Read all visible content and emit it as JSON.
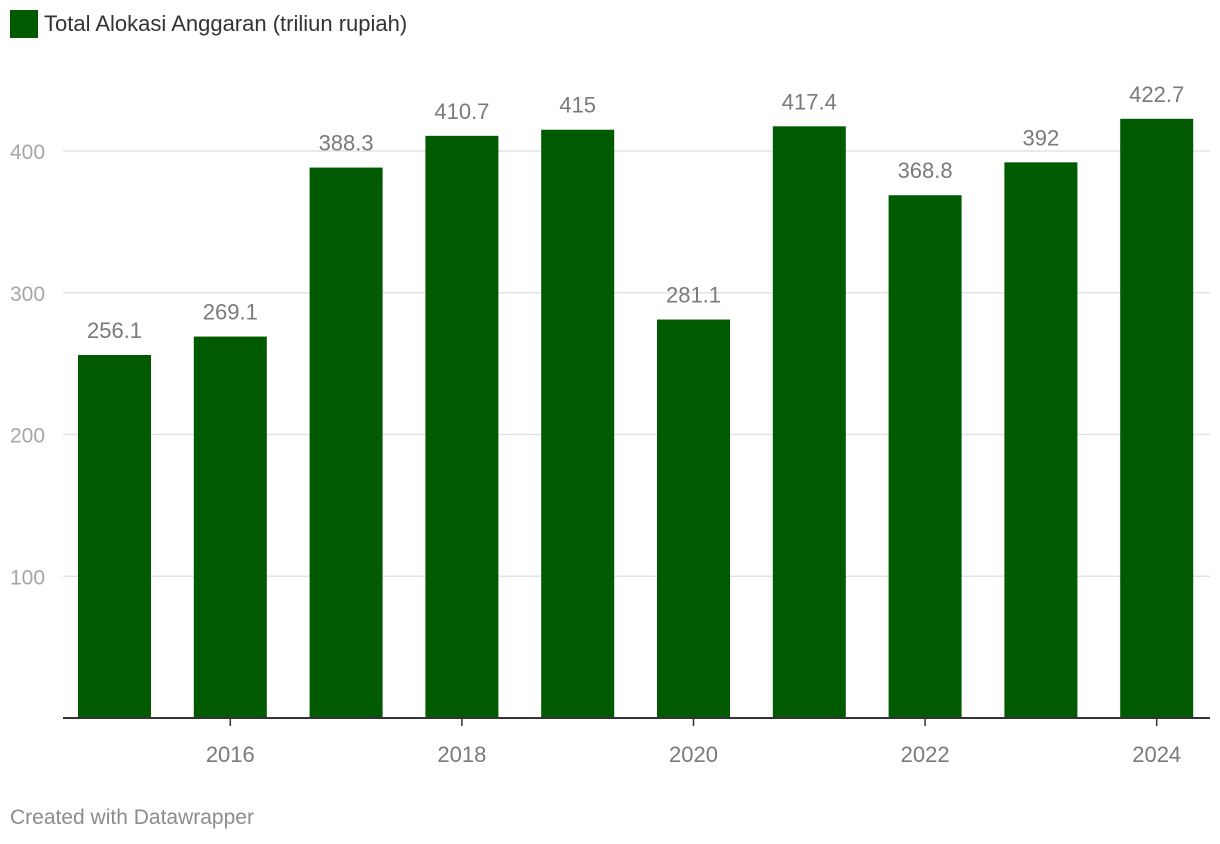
{
  "legend": {
    "label": "Total Alokasi Anggaran (triliun rupiah)",
    "color": "#005a00"
  },
  "credit": "Created with Datawrapper",
  "chart_data": {
    "type": "bar",
    "title": "",
    "xlabel": "",
    "ylabel": "",
    "ylim": [
      0,
      440
    ],
    "yticks": [
      100,
      200,
      300,
      400
    ],
    "xticks": [
      "2016",
      "2018",
      "2020",
      "2022",
      "2024"
    ],
    "categories": [
      "2015",
      "2016",
      "2017",
      "2018",
      "2019",
      "2020",
      "2021",
      "2022",
      "2023",
      "2024"
    ],
    "series": [
      {
        "name": "Total Alokasi Anggaran (triliun rupiah)",
        "color": "#005a00",
        "values": [
          256.1,
          269.1,
          388.3,
          410.7,
          415,
          281.1,
          417.4,
          368.8,
          392,
          422.7
        ],
        "labels": [
          "256.1",
          "269.1",
          "388.3",
          "410.7",
          "415",
          "281.1",
          "417.4",
          "368.8",
          "392",
          "422.7"
        ]
      }
    ],
    "grid": true,
    "legend_position": "top-left"
  }
}
